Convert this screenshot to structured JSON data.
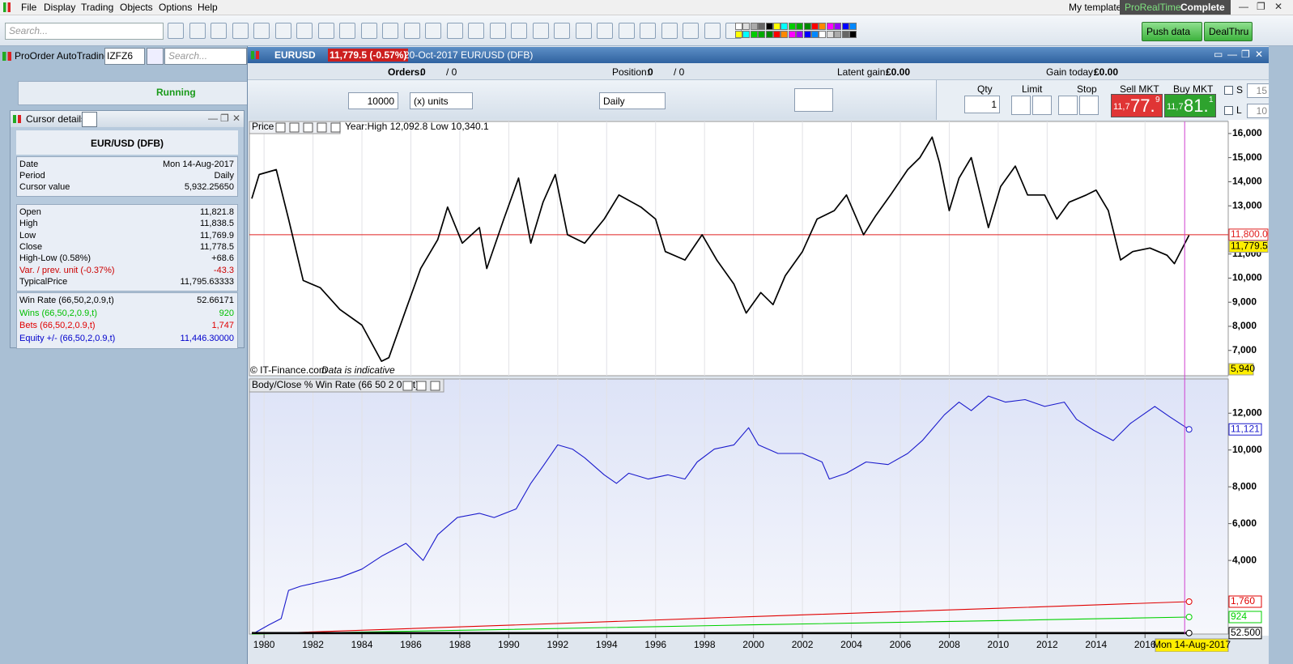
{
  "menu": [
    "File",
    "Display",
    "Trading",
    "Objects",
    "Options",
    "Help"
  ],
  "my_template": "My template",
  "brand": [
    "ProRealTime",
    "Complete"
  ],
  "toolbar_search": "Search...",
  "push_data": "Push data",
  "dealthru": "DealThru",
  "left_panel": {
    "title": "ProOrder AutoTrading",
    "code": "IZFZ6",
    "search": "Search...",
    "status": "Running"
  },
  "cursor_details": {
    "title": "Cursor details",
    "instrument": "EUR/USD (DFB)",
    "groups": [
      [
        {
          "label": "Date",
          "value": "Mon 14-Aug-2017"
        },
        {
          "label": "Period",
          "value": "Daily"
        },
        {
          "label": "Cursor value",
          "value": "5,932.25650"
        }
      ],
      [
        {
          "label": "Open",
          "value": "11,821.8"
        },
        {
          "label": "High",
          "value": "11,838.5"
        },
        {
          "label": "Low",
          "value": "11,769.9"
        },
        {
          "label": "Close",
          "value": "11,778.5"
        },
        {
          "label": "High-Low (0.58%)",
          "value": "+68.6"
        },
        {
          "label": "Var. / prev. unit (-0.37%)",
          "value": "-43.3",
          "color": "#cc0000"
        },
        {
          "label": "TypicalPrice",
          "value": "11,795.63333"
        }
      ],
      [
        {
          "label": "Win Rate (66,50,2,0.9,t)",
          "value": "52.66171",
          "color": "#000000"
        },
        {
          "label": "Wins (66,50,2,0.9,t)",
          "value": "920",
          "color": "#00c000"
        },
        {
          "label": "Bets (66,50,2,0.9,t)",
          "value": "1,747",
          "color": "#e00000"
        },
        {
          "label": "Equity +/- (66,50,2,0.9,t)",
          "value": "11,446.30000",
          "color": "#0000cc"
        }
      ]
    ]
  },
  "window": {
    "symbol": "EURUSD",
    "price_badge": "11,779.5 (-0.57%)",
    "description": "20-Oct-2017 EUR/USD (DFB)"
  },
  "order_bar": {
    "orders_label": "Orders:",
    "orders": "0",
    "orders_total": "/ 0",
    "position_label": "Position:",
    "position": "0",
    "position_total": "/ 0",
    "latent_label": "Latent gain:",
    "latent": "£0.00",
    "today_label": "Gain today:",
    "today": "£0.00"
  },
  "trade": {
    "quantity": "10000",
    "units": "(x) units",
    "period": "Daily",
    "qty_label": "Qty",
    "qty": "1",
    "limit_label": "Limit",
    "stop_label": "Stop",
    "sell_label": "Sell MKT",
    "sell": [
      "11,7",
      "77.",
      "9"
    ],
    "buy_label": "Buy MKT",
    "buy": [
      "11,7",
      "81.",
      "1"
    ],
    "s_label": "S",
    "s": "15",
    "l_label": "L",
    "l": "10"
  },
  "chart_data": [
    {
      "type": "line",
      "title": "Price",
      "subtitle": "Year:High 12,092.8 Low 10,340.1",
      "color": "#000000",
      "x": [
        1979.5,
        1979.8,
        1980.5,
        1981,
        1981.6,
        1982.3,
        1983.1,
        1984,
        1984.8,
        1985.1,
        1985.8,
        1986.4,
        1987.1,
        1987.5,
        1988.1,
        1988.8,
        1989.1,
        1989.8,
        1990.4,
        1990.9,
        1991.4,
        1991.9,
        1992.4,
        1993.1,
        1993.9,
        1994.5,
        1995.4,
        1996,
        1996.4,
        1997.2,
        1997.9,
        1998.5,
        1999.2,
        1999.7,
        2000.3,
        2000.8,
        2001.3,
        2002,
        2002.6,
        2003.3,
        2003.8,
        2004.5,
        2005,
        2005.6,
        2006.3,
        2006.8,
        2007.3,
        2007.6,
        2008,
        2008.4,
        2008.9,
        2009.6,
        2010.1,
        2010.7,
        2011.2,
        2011.9,
        2012.4,
        2012.9,
        2013.6,
        2014,
        2014.5,
        2015,
        2015.5,
        2016.2,
        2016.9,
        2017.2,
        2017.8
      ],
      "values": [
        13300,
        14300,
        14500,
        12450,
        9900,
        9600,
        8700,
        8050,
        6550,
        6700,
        8700,
        10400,
        11600,
        12950,
        11450,
        12100,
        10400,
        12450,
        14150,
        11450,
        13150,
        14300,
        11800,
        11450,
        12450,
        13450,
        12950,
        12450,
        11100,
        10750,
        11800,
        10750,
        9750,
        8550,
        9400,
        8900,
        10100,
        11100,
        12450,
        12800,
        13450,
        11800,
        12600,
        13450,
        14500,
        15000,
        15850,
        14800,
        12800,
        14150,
        15000,
        12100,
        13800,
        14650,
        13450,
        13450,
        12450,
        13150,
        13450,
        13650,
        12800,
        10750,
        11100,
        11250,
        10950,
        10600,
        11779.5
      ],
      "last_label": "11,779.5",
      "level_line": {
        "value": 11800,
        "label": "11,800.0",
        "color": "#e02020"
      },
      "cursor_value_label": "5,940",
      "credit": "© IT-Finance.com",
      "note": "Data is indicative",
      "xlim": [
        1979.4,
        2019.4
      ],
      "ylim": [
        5950,
        16500
      ],
      "yticks": [
        {
          "value": 7000,
          "label": "7,000"
        },
        {
          "value": 8000,
          "label": "8,000"
        },
        {
          "value": 9000,
          "label": "9,000"
        },
        {
          "value": 10000,
          "label": "10,000"
        },
        {
          "value": 11000,
          "label": "11,000"
        },
        {
          "value": 13000,
          "label": "13,000"
        },
        {
          "value": 14000,
          "label": "14,000"
        },
        {
          "value": 15000,
          "label": "15,000"
        },
        {
          "value": 16000,
          "label": "16,000"
        }
      ]
    },
    {
      "type": "line",
      "title": "Body/Close % Win Rate (66 50 2 0.9 t)",
      "xlim": [
        1979.4,
        2019.4
      ],
      "ylim": [
        0,
        13860
      ],
      "yticks": [
        {
          "value": 4000,
          "label": "4,000"
        },
        {
          "value": 6000,
          "label": "6,000"
        },
        {
          "value": 8000,
          "label": "8,000"
        },
        {
          "value": 10000,
          "label": "10,000"
        },
        {
          "value": 12000,
          "label": "12,000"
        }
      ],
      "xticks": [
        1980,
        1982,
        1984,
        1986,
        1988,
        1990,
        1992,
        1994,
        1996,
        1998,
        2000,
        2002,
        2004,
        2006,
        2008,
        2010,
        2012,
        2014,
        2016
      ],
      "cursor": {
        "x": 2017.62,
        "label": "Mon 14-Aug-2017"
      },
      "series": [
        {
          "color": "#1a1acc",
          "end_label": "11,121",
          "x": [
            1979.6,
            1980.2,
            1980.7,
            1981,
            1981.5,
            1982.3,
            1983.1,
            1984,
            1984.8,
            1985.8,
            1986.5,
            1987.1,
            1987.9,
            1988.8,
            1989.4,
            1990.3,
            1990.9,
            1991.4,
            1992,
            1992.6,
            1993.1,
            1993.9,
            1994.4,
            1994.9,
            1995.7,
            1996.5,
            1997.2,
            1997.7,
            1998.4,
            1999.2,
            1999.8,
            2000.2,
            2001,
            2002,
            2002.8,
            2003.1,
            2003.8,
            2004.6,
            2005.5,
            2006.3,
            2006.9,
            2007.8,
            2008.4,
            2008.9,
            2009.6,
            2010.3,
            2011.1,
            2011.9,
            2012.7,
            2013.2,
            2013.9,
            2014.7,
            2015.4,
            2016.4,
            2017,
            2017.8
          ],
          "values": [
            50,
            500,
            840,
            2370,
            2600,
            2840,
            3070,
            3530,
            4230,
            4930,
            4000,
            5400,
            6330,
            6560,
            6330,
            6800,
            8190,
            9120,
            10280,
            10050,
            9580,
            8650,
            8190,
            8740,
            8420,
            8650,
            8420,
            9350,
            10050,
            10280,
            11210,
            10280,
            9810,
            9810,
            9350,
            8420,
            8740,
            9350,
            9210,
            9810,
            10510,
            11910,
            12600,
            12140,
            12930,
            12600,
            12740,
            12370,
            12600,
            11670,
            11070,
            10510,
            11440,
            12370,
            11810,
            11121
          ]
        },
        {
          "color": "#e00000",
          "end_label": "1,760",
          "x": [
            1979.5,
            1990,
            2000,
            2010,
            2017.8
          ],
          "values": [
            0,
            480,
            950,
            1400,
            1760
          ]
        },
        {
          "color": "#00d000",
          "end_label": "924",
          "x": [
            1979.5,
            1990,
            2000,
            2010,
            2017.8
          ],
          "values": [
            0,
            250,
            500,
            730,
            924
          ]
        },
        {
          "color": "#000000",
          "end_label": "52.500",
          "x": [
            1979.5,
            2017.8
          ],
          "values": [
            52.7,
            52.5
          ]
        }
      ]
    }
  ]
}
